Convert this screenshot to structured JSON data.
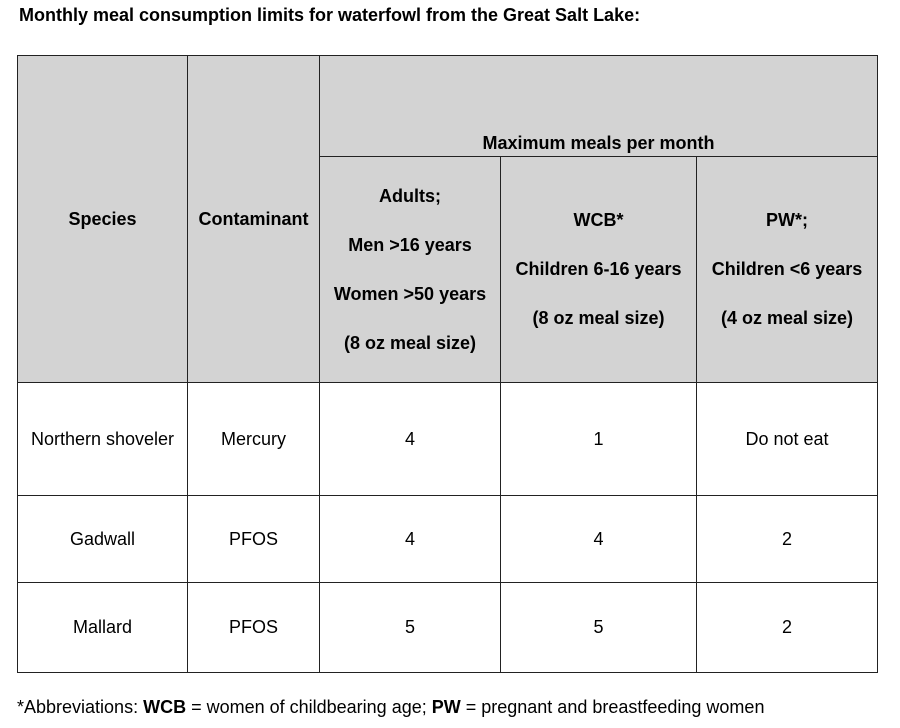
{
  "title": "Monthly meal consumption limits for waterfowl from the Great Salt Lake:",
  "table": {
    "headers": {
      "species": "Species",
      "contaminant": "Contaminant",
      "max_meals": "Maximum meals per month",
      "adults": [
        "Adults;",
        "Men >16 years",
        "Women >50 years",
        "(8 oz meal size)"
      ],
      "wcb": [
        "WCB*",
        "Children 6-16 years",
        "(8 oz meal size)"
      ],
      "pw": [
        "PW*;",
        "Children <6 years",
        "(4 oz meal size)"
      ]
    },
    "rows": [
      {
        "species": "Northern shoveler",
        "contaminant": "Mercury",
        "adults": "4",
        "wcb": "1",
        "pw": "Do not eat"
      },
      {
        "species": "Gadwall",
        "contaminant": "PFOS",
        "adults": "4",
        "wcb": "4",
        "pw": "2"
      },
      {
        "species": "Mallard",
        "contaminant": "PFOS",
        "adults": "5",
        "wcb": "5",
        "pw": "2"
      }
    ]
  },
  "footnote": {
    "prefix": "*Abbreviations: ",
    "wcb_abbr": "WCB",
    "wcb_text": " = women of childbearing age; ",
    "pw_abbr": "PW",
    "pw_text": " = pregnant and breastfeeding women"
  }
}
